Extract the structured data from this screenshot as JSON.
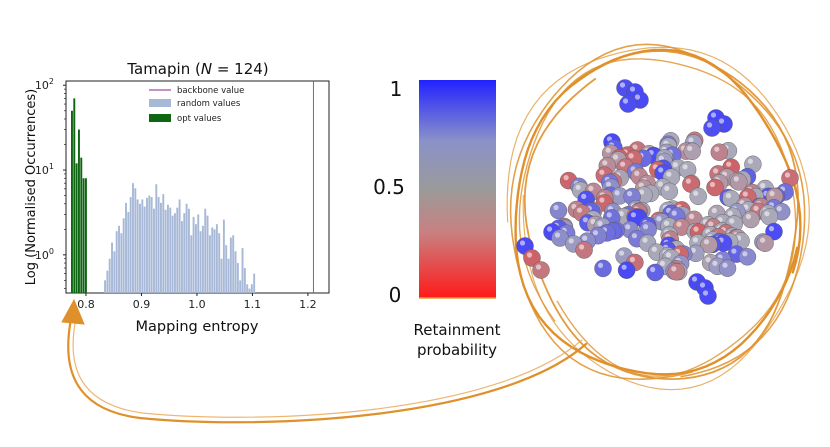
{
  "chart_data": {
    "type": "bar",
    "title": "Tamapin (N = 124)",
    "title_prefix": "Tamapin (",
    "title_italic": "N",
    "title_suffix": " = 124)",
    "xlabel": "Mapping entropy",
    "ylabel": "Log (Normalised Occurrences)",
    "x_ticks": [
      "0.8",
      "0.9",
      "1.0",
      "1.1",
      "1.2"
    ],
    "y_ticks": [
      {
        "base": "10",
        "exp": "0",
        "value": 1
      },
      {
        "base": "10",
        "exp": "1",
        "value": 10
      },
      {
        "base": "10",
        "exp": "2",
        "value": 100
      }
    ],
    "xlim": [
      0.764,
      1.238
    ],
    "ylim_log10": [
      -0.45,
      2.05
    ],
    "y_scale": "log",
    "grid": false,
    "legend_position": "top-center",
    "legend": [
      {
        "label": "backbone value",
        "marker": "line",
        "color": "#a24dab"
      },
      {
        "label": "random values",
        "marker": "patch",
        "color": "#a8b9d8"
      },
      {
        "label": "opt values",
        "marker": "patch",
        "color": "#0e6512"
      }
    ],
    "backbone_value": 1.21,
    "bin_width": 0.0042,
    "random_values": {
      "x": [
        0.8347,
        0.8389,
        0.8431,
        0.8473,
        0.8515,
        0.8557,
        0.8599,
        0.8641,
        0.8683,
        0.8725,
        0.8767,
        0.8809,
        0.8851,
        0.8893,
        0.8935,
        0.8977,
        0.9019,
        0.9061,
        0.9103,
        0.9145,
        0.9187,
        0.9229,
        0.9271,
        0.9313,
        0.9355,
        0.9397,
        0.9439,
        0.9481,
        0.9523,
        0.9565,
        0.9607,
        0.9649,
        0.9691,
        0.9733,
        0.9775,
        0.9817,
        0.9859,
        0.9901,
        0.9943,
        0.9985,
        1.0027,
        1.0069,
        1.0111,
        1.0153,
        1.0195,
        1.0237,
        1.0279,
        1.0321,
        1.0363,
        1.0405,
        1.0447,
        1.0489,
        1.0531,
        1.0573,
        1.0615,
        1.0657,
        1.0699,
        1.0741,
        1.0783,
        1.0825,
        1.0867,
        1.0909,
        1.0951,
        1.0993,
        1.1035,
        1.1077
      ],
      "y": [
        0.5,
        0.65,
        0.9,
        1.4,
        1.1,
        1.9,
        2.2,
        1.8,
        2.7,
        4.1,
        3.2,
        4.8,
        7.0,
        6.1,
        4.5,
        4.0,
        4.5,
        3.7,
        4.7,
        5.0,
        4.8,
        3.5,
        6.8,
        4.8,
        4.1,
        5.2,
        3.4,
        3.9,
        3.6,
        2.9,
        3.1,
        3.6,
        4.5,
        2.5,
        3.1,
        4.0,
        3.5,
        1.7,
        2.8,
        2.3,
        3.0,
        1.9,
        2.2,
        3.5,
        2.9,
        1.7,
        2.1,
        2.0,
        2.3,
        1.8,
        0.9,
        2.6,
        1.3,
        0.9,
        1.6,
        1.7,
        1.1,
        0.8,
        0.5,
        1.2,
        0.7,
        0.45,
        0.4,
        0.45,
        0.6,
        0.35
      ]
    },
    "opt_values": {
      "x": [
        0.7751,
        0.7793,
        0.7835,
        0.7877,
        0.7919,
        0.7961,
        0.8003
      ],
      "y": [
        50,
        70,
        12,
        30,
        14,
        8,
        8
      ]
    },
    "color_map": {
      "label_line1": "Retainment",
      "label_line2": "probability",
      "ticks": [
        "1",
        "0.5",
        "0"
      ],
      "colors": [
        "#2222ff",
        "#8a92c8",
        "#9a9a9a",
        "#c98080",
        "#ff1a1a"
      ]
    }
  },
  "protein": {
    "shell_color": "#e0902a",
    "bead_colors": {
      "high": "#3b3bff",
      "mid": "#a9a9b9",
      "low": "#e23b3b"
    }
  }
}
